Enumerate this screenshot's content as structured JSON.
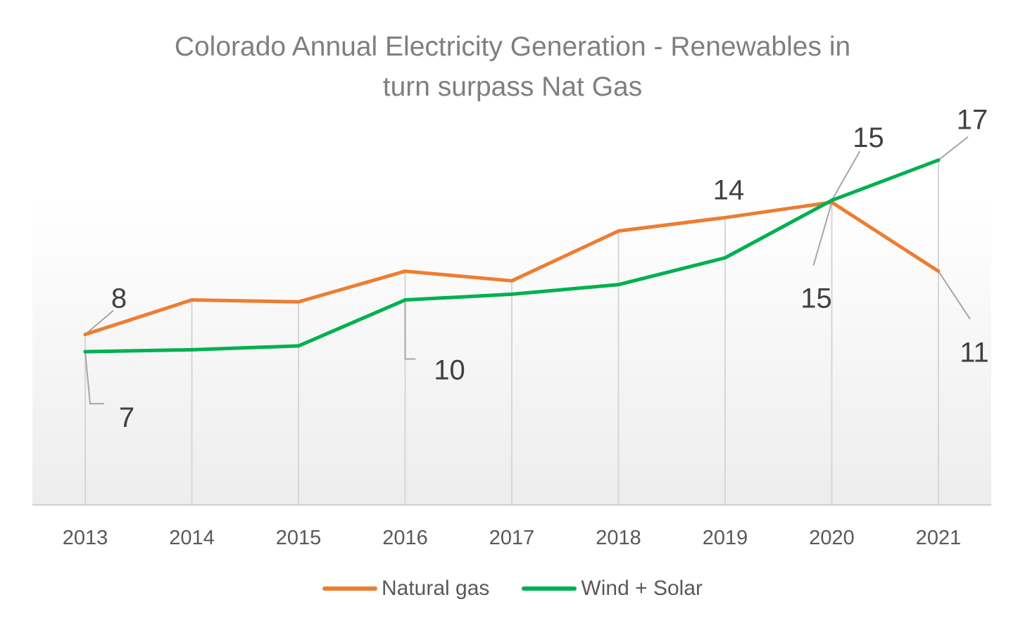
{
  "chart_data": {
    "type": "line",
    "title": "Colorado Annual Electricity Generation - Renewables in turn surpass Nat Gas",
    "title_lines": [
      "Colorado Annual Electricity Generation - Renewables in",
      "turn surpass Nat Gas"
    ],
    "xlabel": "",
    "ylabel": "",
    "x": [
      "2013",
      "2014",
      "2015",
      "2016",
      "2017",
      "2018",
      "2019",
      "2020",
      "2021"
    ],
    "ylim": [
      -1,
      20
    ],
    "grid": "vertical",
    "legend_position": "bottom",
    "series": [
      {
        "name": "Natural gas",
        "color": "#ED7D31",
        "values": [
          7.9,
          9.7,
          9.6,
          11.2,
          10.7,
          13.3,
          14.0,
          14.8,
          11.2
        ],
        "data_labels": [
          {
            "index": 0,
            "text": "8"
          },
          {
            "index": 6,
            "text": "14"
          },
          {
            "index": 7,
            "text": "15"
          },
          {
            "index": 8,
            "text": "11"
          }
        ]
      },
      {
        "name": "Wind + Solar",
        "color": "#00B050",
        "values": [
          7.0,
          7.1,
          7.3,
          9.7,
          10.0,
          10.5,
          11.9,
          14.9,
          17.0
        ],
        "data_labels": [
          {
            "index": 0,
            "text": "7"
          },
          {
            "index": 3,
            "text": "10"
          },
          {
            "index": 7,
            "text": "15"
          },
          {
            "index": 8,
            "text": "17"
          }
        ]
      }
    ]
  }
}
